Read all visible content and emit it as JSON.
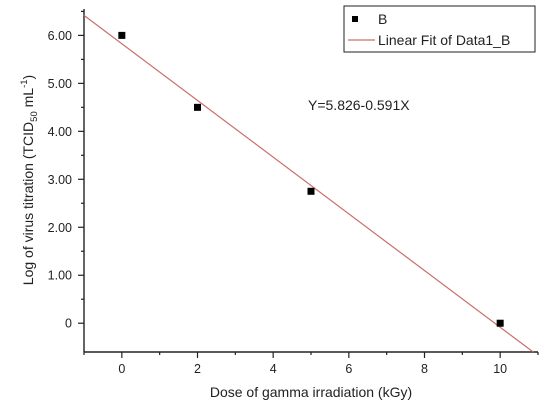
{
  "chart_data": {
    "type": "scatter",
    "xlabel": "Dose of gamma irradiation (kGy)",
    "ylabel": {
      "prefix": "Log of virus titration (TCID",
      "sub": "50",
      "mid": " mL",
      "sup": "-1",
      "suffix": ")"
    },
    "xlim": [
      -1,
      11
    ],
    "ylim": [
      -0.6,
      6.55
    ],
    "x_ticks": [
      0,
      2,
      4,
      6,
      8,
      10
    ],
    "x_tick_labels": [
      "0",
      "2",
      "4",
      "6",
      "8",
      "10"
    ],
    "y_ticks": [
      0,
      1,
      2,
      3,
      4,
      5,
      6
    ],
    "y_tick_labels": [
      "0",
      "1.00",
      "2.00",
      "3.00",
      "4.00",
      "5.00",
      "6.00"
    ],
    "series": [
      {
        "name": "B",
        "marker": "square",
        "color": "#000000",
        "points": [
          {
            "x": 0,
            "y": 6.0
          },
          {
            "x": 2,
            "y": 4.5
          },
          {
            "x": 5,
            "y": 2.75
          },
          {
            "x": 10,
            "y": 0.0
          }
        ]
      }
    ],
    "fit": {
      "name": "Linear Fit of Data1_B",
      "color": "#c8706a",
      "intercept": 5.826,
      "slope": -0.591,
      "equation": "Y=5.826-0.591X"
    },
    "legend_position": "top-right",
    "grid": false
  }
}
